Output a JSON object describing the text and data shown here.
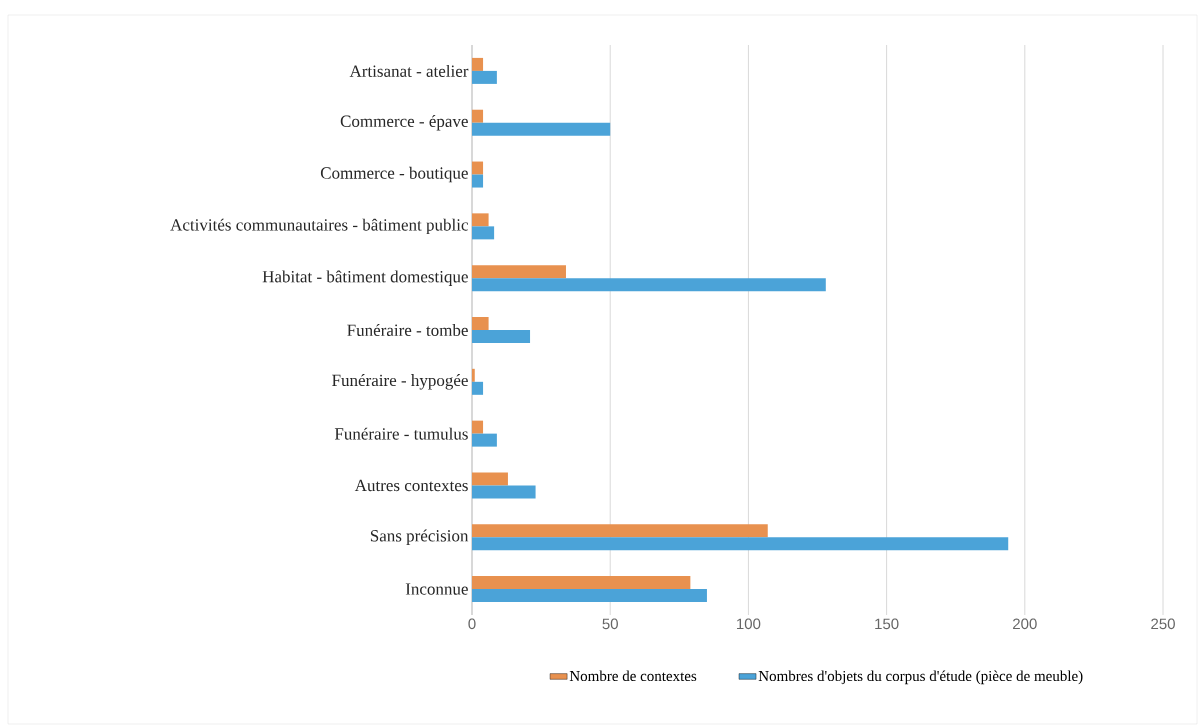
{
  "chart_data": {
    "type": "bar",
    "orientation": "horizontal",
    "categories": [
      "Artisanat - atelier",
      "Commerce - épave",
      "Commerce - boutique",
      "Activités communautaires - bâtiment public",
      "Habitat - bâtiment domestique",
      "Funéraire - tombe",
      "Funéraire - hypogée",
      "Funéraire - tumulus",
      "Autres contextes",
      "Sans précision",
      "Inconnue"
    ],
    "series": [
      {
        "name": "Nombre de contextes",
        "color": "#e8914f",
        "values": [
          4,
          4,
          4,
          6,
          34,
          6,
          1,
          4,
          13,
          107,
          79
        ]
      },
      {
        "name": "Nombres d'objets du corpus d'étude (pièce de meuble)",
        "color": "#4ba3d8",
        "values": [
          9,
          50,
          4,
          8,
          128,
          21,
          4,
          9,
          23,
          194,
          85
        ]
      }
    ],
    "xlim": [
      0,
      250
    ],
    "xticks": [
      0,
      50,
      100,
      150,
      200,
      250
    ],
    "grid": "x",
    "legend": "bottom"
  }
}
